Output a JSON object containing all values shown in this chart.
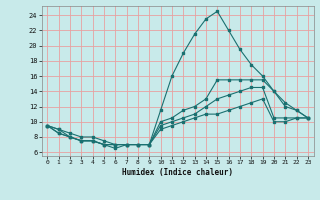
{
  "xlabel": "Humidex (Indice chaleur)",
  "bg_color": "#c8eaea",
  "grid_color": "#e8a0a0",
  "line_color": "#1a7070",
  "xlim": [
    -0.5,
    23.5
  ],
  "ylim": [
    5.5,
    25.2
  ],
  "xticks": [
    0,
    1,
    2,
    3,
    4,
    5,
    6,
    7,
    8,
    9,
    10,
    11,
    12,
    13,
    14,
    15,
    16,
    17,
    18,
    19,
    20,
    21,
    22,
    23
  ],
  "yticks": [
    6,
    8,
    10,
    12,
    14,
    16,
    18,
    20,
    22,
    24
  ],
  "line1_y": [
    9.5,
    9.0,
    8.0,
    7.5,
    7.5,
    7.0,
    6.5,
    7.0,
    7.0,
    7.0,
    11.5,
    16.0,
    19.0,
    21.5,
    23.5,
    24.5,
    22.0,
    19.5,
    17.5,
    16.0,
    14.0,
    12.0,
    11.5,
    10.5
  ],
  "line2_y": [
    9.5,
    9.0,
    8.5,
    8.0,
    8.0,
    7.5,
    7.0,
    7.0,
    7.0,
    7.0,
    10.0,
    10.5,
    11.5,
    12.0,
    13.0,
    15.5,
    15.5,
    15.5,
    15.5,
    15.5,
    14.0,
    12.5,
    11.5,
    10.5
  ],
  "line3_y": [
    9.5,
    8.5,
    8.0,
    7.5,
    7.5,
    7.0,
    7.0,
    7.0,
    7.0,
    7.0,
    9.5,
    10.0,
    10.5,
    11.0,
    12.0,
    13.0,
    13.5,
    14.0,
    14.5,
    14.5,
    10.5,
    10.5,
    10.5,
    10.5
  ],
  "line4_y": [
    9.5,
    8.5,
    8.0,
    7.5,
    7.5,
    7.0,
    7.0,
    7.0,
    7.0,
    7.0,
    9.0,
    9.5,
    10.0,
    10.5,
    11.0,
    11.0,
    11.5,
    12.0,
    12.5,
    13.0,
    10.0,
    10.0,
    10.5,
    10.5
  ]
}
